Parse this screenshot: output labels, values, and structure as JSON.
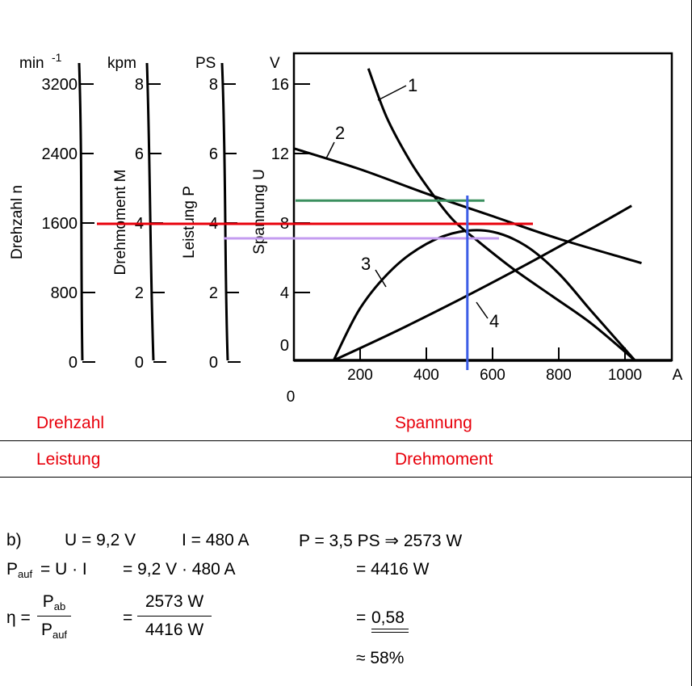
{
  "scales": {
    "drehzahl": {
      "unit": "min",
      "unit_exp": "-1",
      "ticks": [
        "3200",
        "2400",
        "1600",
        "800",
        "0"
      ],
      "axis_label": "Drehzahl n"
    },
    "moment": {
      "unit": "kpm",
      "ticks": [
        "8",
        "6",
        "4",
        "2",
        "0"
      ],
      "axis_label": "Drehmoment M"
    },
    "leistung": {
      "unit": "PS",
      "ticks": [
        "8",
        "6",
        "4",
        "2",
        "0"
      ],
      "axis_label": "Leistung P"
    },
    "spannung": {
      "unit": "V",
      "ticks": [
        "16",
        "12",
        "8",
        "4",
        "0"
      ],
      "axis_label": "Spannung U"
    }
  },
  "x_axis": {
    "unit": "A",
    "ticks": [
      "200",
      "400",
      "600",
      "800",
      "1000"
    ],
    "origin": "0"
  },
  "curve_labels": [
    "1",
    "2",
    "3",
    "4"
  ],
  "chart_data": {
    "type": "line",
    "x_unit": "A",
    "xlim": [
      0,
      1000
    ],
    "ylim_spannung": [
      0,
      16
    ],
    "series": [
      {
        "name": "1",
        "x": [
          225,
          280,
          350,
          410,
          480,
          560,
          660,
          780,
          900,
          1030
        ],
        "y": [
          16.8,
          14.0,
          11.5,
          9.8,
          8.1,
          6.8,
          5.3,
          3.7,
          2.1,
          0.0
        ]
      },
      {
        "name": "2",
        "x": [
          0,
          200,
          400,
          600,
          800,
          1050
        ],
        "y": [
          12.2,
          11.0,
          9.6,
          8.3,
          7.0,
          5.6
        ]
      },
      {
        "name": "3",
        "x": [
          120,
          200,
          300,
          400,
          500,
          600,
          700,
          800,
          900,
          1030
        ],
        "y": [
          0,
          3.0,
          5.3,
          6.7,
          7.4,
          7.4,
          6.6,
          5.0,
          2.8,
          0.0
        ]
      },
      {
        "name": "4",
        "x": [
          120,
          300,
          500,
          700,
          900,
          1020
        ],
        "y": [
          0,
          1.6,
          3.5,
          5.5,
          7.6,
          8.9
        ]
      }
    ],
    "markers": [
      {
        "color": "#3a8f5f",
        "y_spannung": 9.2
      },
      {
        "color": "#e8000b",
        "y_drehzahl": 1600
      },
      {
        "color": "#c49cf0",
        "y_leistung": 3.5
      },
      {
        "color": "#3d5ee6",
        "x": 480
      }
    ]
  },
  "legend_left": {
    "row1": "Drehzahl",
    "row2": "Leistung"
  },
  "legend_right": {
    "row1": "Spannung",
    "row2": "Drehmoment"
  },
  "colors": {
    "label_red": "#e8000b",
    "green": "#3a8f5f",
    "red": "#e8000b",
    "violet": "#c49cf0",
    "blue": "#3d5ee6"
  },
  "calc": {
    "part": "b)",
    "u": "U = 9,2 V",
    "i": "I = 480 A",
    "p": "P = 3,5 PS ⇒ 2573 W",
    "pauf_lhs_main": "P",
    "pauf_lhs_sub": "auf",
    "pauf_eq": "= U · I",
    "pauf_mid": "= 9,2 V · 480 A",
    "pauf_res": "= 4416 W",
    "eta": "η =",
    "eta_num_main": "P",
    "eta_num_sub": "ab",
    "eta_den_main": "P",
    "eta_den_sub": "auf",
    "eq": "=",
    "eta_num_val": "2573 W",
    "eta_den_val": "4416 W",
    "eta_res_eq": "=",
    "eta_res": "0,58",
    "approx": "≈ 58%"
  }
}
